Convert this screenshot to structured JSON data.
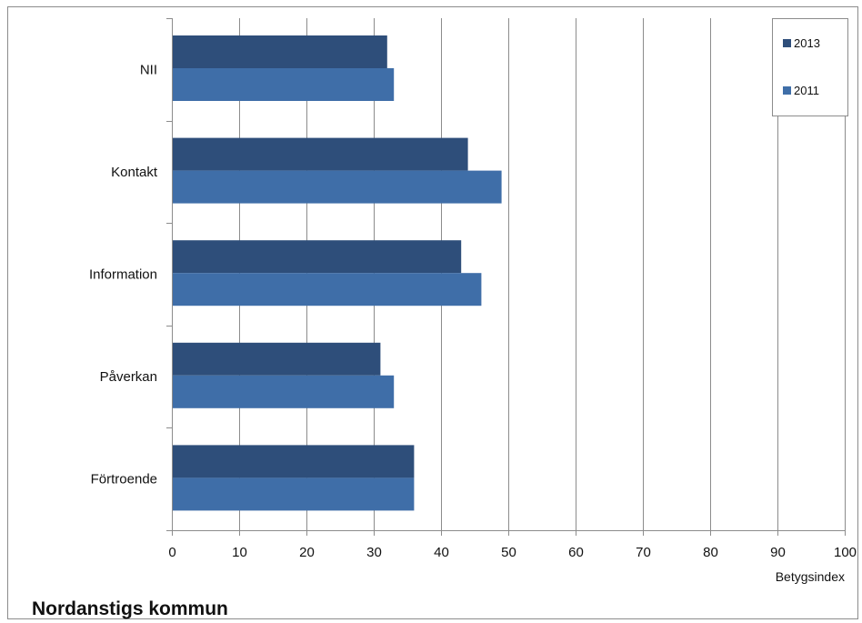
{
  "chart_data": {
    "type": "bar",
    "orientation": "horizontal",
    "categories": [
      "NII",
      "Kontakt",
      "Information",
      "Påverkan",
      "Förtroende"
    ],
    "series": [
      {
        "name": "2013",
        "values": [
          32,
          44,
          43,
          31,
          36
        ],
        "color": "#2e4e7a"
      },
      {
        "name": "2011",
        "values": [
          33,
          49,
          46,
          33,
          36
        ],
        "color": "#3f6ea8"
      }
    ],
    "xlabel": "Betygsindex",
    "ylabel": "",
    "xlim": [
      0,
      100
    ],
    "xticks": [
      "0",
      "10",
      "20",
      "30",
      "40",
      "50",
      "60",
      "70",
      "80",
      "90",
      "100"
    ],
    "grid": "vertical",
    "legend_position": "top-right"
  },
  "footer_title": "Nordanstigs kommun"
}
